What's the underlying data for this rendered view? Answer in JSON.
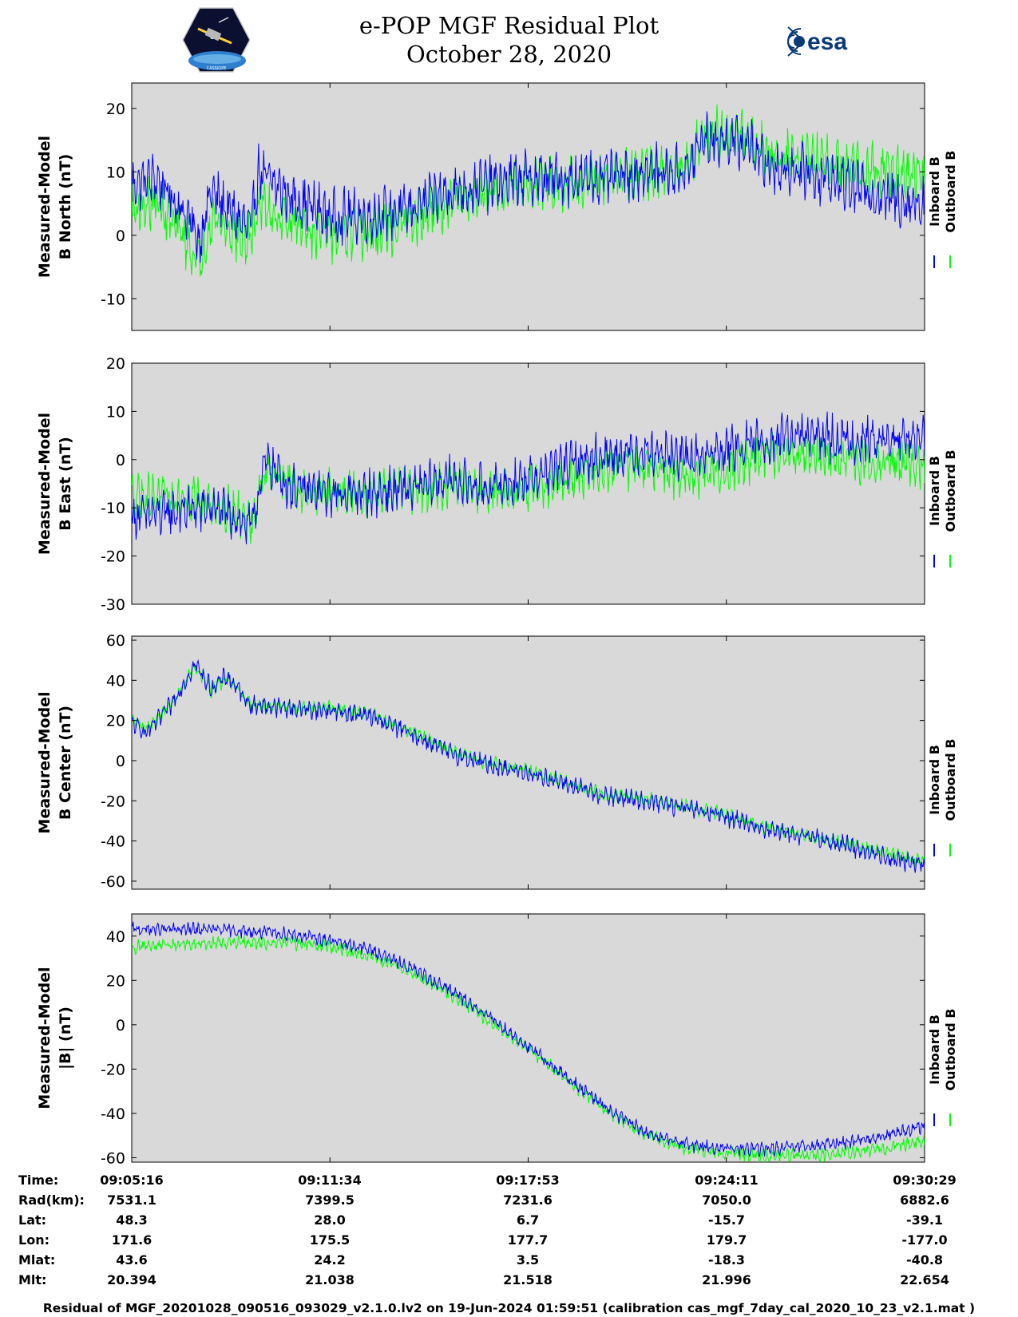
{
  "header": {
    "title_line1": "e-POP MGF Residual Plot",
    "title_line2": "October 28, 2020",
    "logo_left_text": "CASSIOPE",
    "logo_right_text": "esa"
  },
  "colors": {
    "inboard": "#0000ff",
    "outboard": "#00ff00",
    "panel_bg": "#d9d9d9"
  },
  "chart_data": [
    {
      "type": "line",
      "ylabel": [
        "Measured-Model",
        "B North (nT)"
      ],
      "ylim": [
        -15,
        24
      ],
      "yticks": [
        20,
        10,
        0,
        -10
      ],
      "ytick_labels": [
        "20",
        "10",
        "0",
        "-10"
      ],
      "legend": [
        "Inboard B",
        "Outboard B"
      ],
      "x_fraction": [
        0,
        0.03,
        0.07,
        0.085,
        0.1,
        0.12,
        0.15,
        0.16,
        0.2,
        0.25,
        0.3,
        0.35,
        0.4,
        0.45,
        0.5,
        0.55,
        0.6,
        0.65,
        0.7,
        0.72,
        0.75,
        0.78,
        0.8,
        0.85,
        0.9,
        0.95,
        1.0
      ],
      "series": [
        {
          "name": "Inboard B",
          "color": "#0000ff",
          "noise": 3.5,
          "values": [
            8,
            9,
            3,
            -1,
            7,
            4,
            1,
            10,
            6,
            3,
            3,
            4,
            7,
            8,
            9,
            9,
            9,
            10,
            10,
            15,
            15,
            14,
            11,
            10,
            8,
            6,
            5
          ]
        },
        {
          "name": "Outboard B",
          "color": "#00ff00",
          "noise": 3.5,
          "values": [
            4,
            5,
            -1,
            -5,
            3,
            1,
            -1,
            5,
            2,
            0,
            0,
            2,
            5,
            7,
            8,
            8,
            9,
            10,
            11,
            16,
            16,
            15,
            13,
            12,
            11,
            10,
            9
          ]
        }
      ]
    },
    {
      "type": "line",
      "ylabel": [
        "Measured-Model",
        "B East (nT)"
      ],
      "ylim": [
        -30,
        20
      ],
      "yticks": [
        20,
        10,
        0,
        -10,
        -20,
        -30
      ],
      "ytick_labels": [
        "20",
        "10",
        "0",
        "-10",
        "-20",
        "-30"
      ],
      "legend": [
        "Inboard B",
        "Outboard B"
      ],
      "x_fraction": [
        0,
        0.05,
        0.1,
        0.13,
        0.15,
        0.17,
        0.2,
        0.25,
        0.3,
        0.36,
        0.4,
        0.45,
        0.5,
        0.55,
        0.6,
        0.65,
        0.7,
        0.75,
        0.8,
        0.85,
        0.9,
        0.95,
        1.0
      ],
      "series": [
        {
          "name": "Inboard B",
          "color": "#0000ff",
          "noise": 4,
          "values": [
            -12,
            -11,
            -10,
            -12,
            -14,
            0,
            -6,
            -7,
            -7,
            -6,
            -4,
            -6,
            -4,
            -1,
            1,
            2,
            0,
            2,
            4,
            5,
            4,
            4,
            4
          ]
        },
        {
          "name": "Outboard B",
          "color": "#00ff00",
          "noise": 4,
          "values": [
            -7,
            -8,
            -9,
            -11,
            -13,
            -1,
            -6,
            -7,
            -7,
            -6,
            -5,
            -7,
            -6,
            -4,
            -2,
            -1,
            -4,
            -2,
            1,
            1,
            0,
            -1,
            -1
          ]
        }
      ]
    },
    {
      "type": "line",
      "ylabel": [
        "Measured-Model",
        "B Center (nT)"
      ],
      "ylim": [
        -64,
        62
      ],
      "yticks": [
        60,
        40,
        20,
        0,
        -20,
        -40,
        -60
      ],
      "ytick_labels": [
        "60",
        "40",
        "20",
        "0",
        "-20",
        "-40",
        "-60"
      ],
      "legend": [
        "Inboard B",
        "Outboard B"
      ],
      "x_fraction": [
        0,
        0.02,
        0.05,
        0.08,
        0.1,
        0.12,
        0.15,
        0.2,
        0.25,
        0.3,
        0.35,
        0.4,
        0.45,
        0.5,
        0.55,
        0.6,
        0.65,
        0.7,
        0.75,
        0.8,
        0.85,
        0.9,
        0.95,
        1.0
      ],
      "series": [
        {
          "name": "Inboard B",
          "color": "#0000ff",
          "noise": 4,
          "values": [
            18,
            14,
            28,
            48,
            36,
            42,
            28,
            26,
            25,
            22,
            14,
            4,
            -2,
            -6,
            -12,
            -18,
            -20,
            -24,
            -28,
            -34,
            -38,
            -42,
            -48,
            -52
          ]
        },
        {
          "name": "Outboard B",
          "color": "#00ff00",
          "noise": 3,
          "values": [
            20,
            16,
            28,
            47,
            35,
            41,
            28,
            26,
            26,
            23,
            15,
            5,
            -1,
            -5,
            -11,
            -17,
            -19,
            -23,
            -27,
            -33,
            -37,
            -41,
            -46,
            -50
          ]
        }
      ]
    },
    {
      "type": "line",
      "ylabel": [
        "Measured-Model",
        "|B| (nT)"
      ],
      "ylim": [
        -62,
        50
      ],
      "yticks": [
        40,
        20,
        0,
        -20,
        -40,
        -60
      ],
      "ytick_labels": [
        "40",
        "20",
        "0",
        "-20",
        "-40",
        "-60"
      ],
      "legend": [
        "Inboard B",
        "Outboard B"
      ],
      "x_fraction": [
        0,
        0.1,
        0.2,
        0.25,
        0.3,
        0.35,
        0.4,
        0.45,
        0.5,
        0.55,
        0.6,
        0.65,
        0.7,
        0.75,
        0.8,
        0.85,
        0.9,
        0.95,
        1.0
      ],
      "series": [
        {
          "name": "Inboard B",
          "color": "#0000ff",
          "noise": 2.5,
          "values": [
            43,
            43,
            41,
            38,
            34,
            26,
            16,
            4,
            -10,
            -24,
            -38,
            -49,
            -54,
            -56,
            -56,
            -55,
            -53,
            -50,
            -46
          ]
        },
        {
          "name": "Outboard B",
          "color": "#00ff00",
          "noise": 2.5,
          "values": [
            35,
            37,
            37,
            35,
            31,
            24,
            14,
            2,
            -11,
            -25,
            -39,
            -50,
            -56,
            -58,
            -59,
            -59,
            -58,
            -56,
            -52
          ]
        }
      ]
    }
  ],
  "ephemeris": {
    "labels": [
      "Time:",
      "Rad(km):",
      "Lat:",
      "Lon:",
      "Mlat:",
      "Mlt:"
    ],
    "columns": [
      [
        "09:05:16",
        "7531.1",
        "48.3",
        "171.6",
        "43.6",
        "20.394"
      ],
      [
        "09:11:34",
        "7399.5",
        "28.0",
        "175.5",
        "24.2",
        "21.038"
      ],
      [
        "09:17:53",
        "7231.6",
        "6.7",
        "177.7",
        "3.5",
        "21.518"
      ],
      [
        "09:24:11",
        "7050.0",
        "-15.7",
        "179.7",
        "-18.3",
        "21.996"
      ],
      [
        "09:30:29",
        "6882.6",
        "-39.1",
        "-177.0",
        "-40.8",
        "22.654"
      ]
    ]
  },
  "footer": {
    "text": "Residual of MGF_20201028_090516_093029_v2.1.0.lv2 on 19-Jun-2024 01:59:51 (calibration cas_mgf_7day_cal_2020_10_23_v2.1.mat )"
  }
}
